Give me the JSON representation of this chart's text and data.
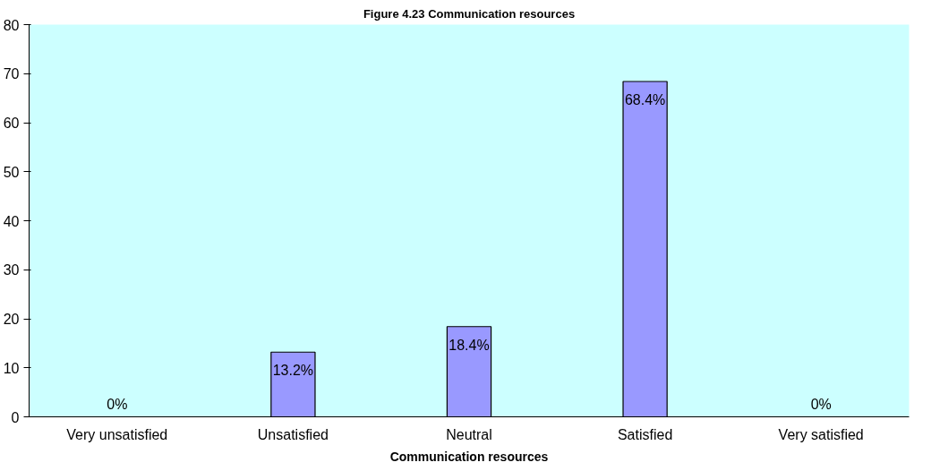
{
  "chart_data": {
    "type": "bar",
    "title": "Figure 4.23 Communication resources",
    "xlabel": "Communication resources",
    "categories": [
      "Very unsatisfied",
      "Unsatisfied",
      "Neutral",
      "Satisfied",
      "Very satisfied"
    ],
    "values": [
      0,
      13.2,
      18.4,
      68.4,
      0
    ],
    "value_labels": [
      "0%",
      "13.2%",
      "18.4%",
      "68.4%",
      "0%"
    ],
    "color": "#9999ff",
    "ylim": [
      0,
      80
    ],
    "yticks": [
      0,
      10,
      20,
      30,
      40,
      50,
      60,
      70,
      80
    ],
    "grid": false
  }
}
